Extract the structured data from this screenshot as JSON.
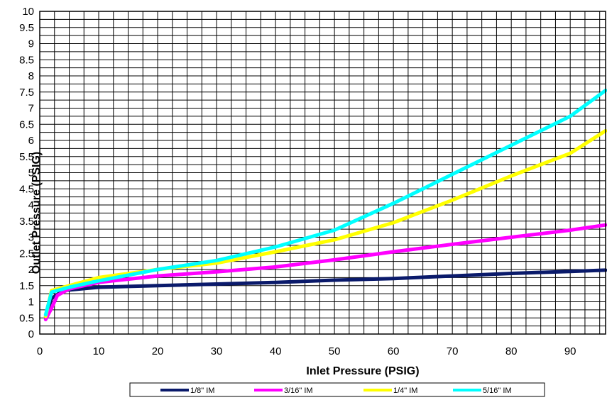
{
  "chart_data": {
    "type": "line",
    "title": "",
    "xlabel": "Inlet Pressure  (PSIG)",
    "ylabel": "Outlet Pressure (PSIG)",
    "xlim": [
      0,
      96
    ],
    "ylim": [
      0,
      10
    ],
    "x_ticks": [
      "0",
      "10",
      "20",
      "30",
      "40",
      "50",
      "60",
      "70",
      "80",
      "90"
    ],
    "y_ticks": [
      "0",
      "0.5",
      "1",
      "1.5",
      "2",
      "2.5",
      "3",
      "3.5",
      "4",
      "4.5",
      "5",
      "5.5",
      "6",
      "6.5",
      "7",
      "7.5",
      "8",
      "8.5",
      "9",
      "9.5",
      "10"
    ],
    "grid": true,
    "legend_position": "bottom",
    "series": [
      {
        "name": "1/8\" IM",
        "color": "#0a1a6b",
        "points": [
          [
            1,
            0.55
          ],
          [
            2,
            1.1
          ],
          [
            4,
            1.35
          ],
          [
            10,
            1.45
          ],
          [
            20,
            1.5
          ],
          [
            30,
            1.55
          ],
          [
            40,
            1.6
          ],
          [
            50,
            1.67
          ],
          [
            60,
            1.72
          ],
          [
            70,
            1.8
          ],
          [
            80,
            1.88
          ],
          [
            90,
            1.94
          ],
          [
            96,
            1.98
          ]
        ]
      },
      {
        "name": "3/16\" IM",
        "color": "#ff00ff",
        "points": [
          [
            1,
            0.45
          ],
          [
            2,
            0.8
          ],
          [
            3,
            1.2
          ],
          [
            5,
            1.4
          ],
          [
            10,
            1.6
          ],
          [
            20,
            1.8
          ],
          [
            30,
            1.93
          ],
          [
            40,
            2.08
          ],
          [
            50,
            2.3
          ],
          [
            60,
            2.55
          ],
          [
            70,
            2.78
          ],
          [
            80,
            3.0
          ],
          [
            90,
            3.22
          ],
          [
            96,
            3.38
          ]
        ]
      },
      {
        "name": "1/4\" IM",
        "color": "#ffff00",
        "points": [
          [
            1,
            0.55
          ],
          [
            2,
            1.35
          ],
          [
            5,
            1.5
          ],
          [
            10,
            1.75
          ],
          [
            20,
            2.0
          ],
          [
            30,
            2.2
          ],
          [
            40,
            2.55
          ],
          [
            50,
            2.92
          ],
          [
            60,
            3.45
          ],
          [
            70,
            4.15
          ],
          [
            80,
            4.9
          ],
          [
            90,
            5.6
          ],
          [
            96,
            6.3
          ]
        ]
      },
      {
        "name": "5/16\" IM",
        "color": "#00ffff",
        "points": [
          [
            1,
            0.6
          ],
          [
            2,
            1.3
          ],
          [
            5,
            1.45
          ],
          [
            10,
            1.65
          ],
          [
            20,
            2.0
          ],
          [
            30,
            2.28
          ],
          [
            40,
            2.7
          ],
          [
            50,
            3.22
          ],
          [
            60,
            4.05
          ],
          [
            70,
            4.95
          ],
          [
            80,
            5.85
          ],
          [
            90,
            6.75
          ],
          [
            96,
            7.55
          ]
        ]
      }
    ]
  }
}
